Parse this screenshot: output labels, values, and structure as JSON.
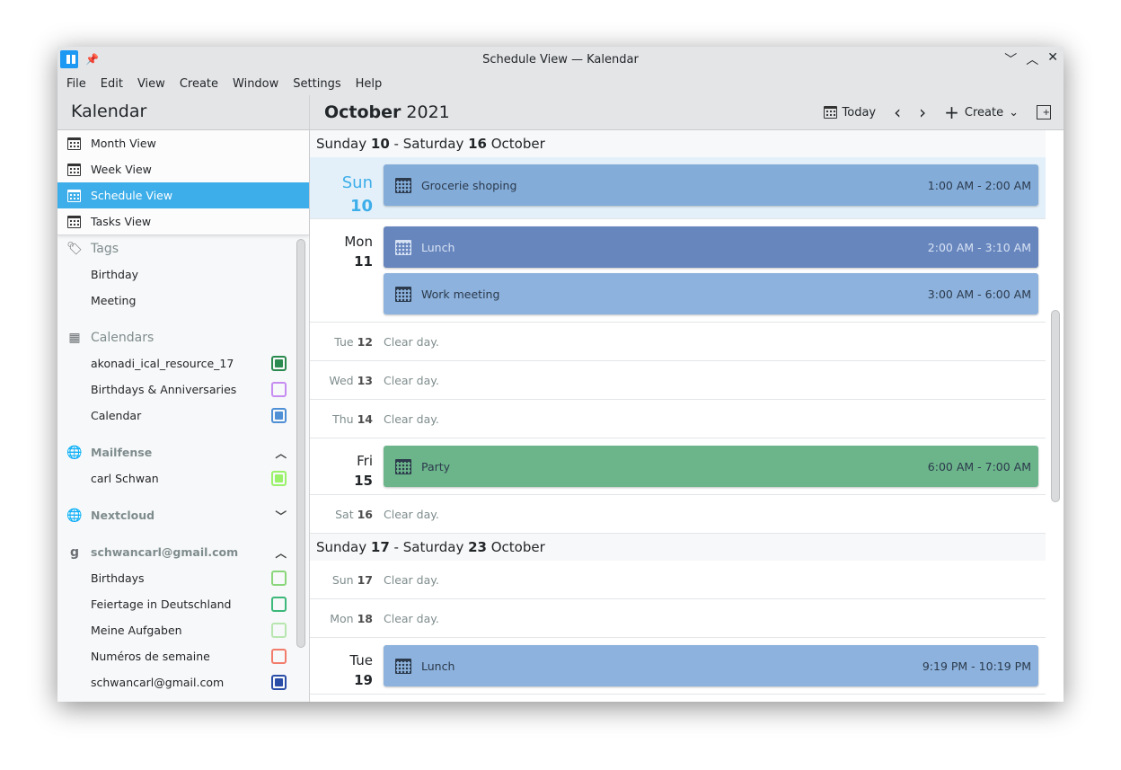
{
  "window": {
    "title": "Schedule View — Kalendar",
    "controls": [
      "﹀",
      "︿",
      "✕"
    ]
  },
  "menu": [
    "File",
    "Edit",
    "View",
    "Create",
    "Window",
    "Settings",
    "Help"
  ],
  "sidebar": {
    "title": "Kalendar",
    "views": [
      {
        "label": "Month View"
      },
      {
        "label": "Week View"
      },
      {
        "label": "Schedule View",
        "selected": true
      },
      {
        "label": "Tasks View"
      }
    ],
    "tags": {
      "label": "Tags",
      "items": [
        "Birthday",
        "Meeting"
      ]
    },
    "calendars": {
      "label": "Calendars",
      "items": [
        {
          "name": "akonadi_ical_resource_17",
          "color": "#2b8a4f",
          "checked": true
        },
        {
          "name": "Birthdays & Anniversaries",
          "color": "#c78cf2",
          "checked": false
        },
        {
          "name": "Calendar",
          "color": "#4f8fd6",
          "checked": true
        }
      ]
    },
    "accounts": [
      {
        "label": "Mailfense",
        "icon": "globe-icon",
        "expanded": true,
        "items": [
          {
            "name": "carl Schwan",
            "color": "#9af26b",
            "checked": true
          }
        ]
      },
      {
        "label": "Nextcloud",
        "icon": "globe-icon",
        "expanded": false,
        "items": []
      },
      {
        "label": "schwancarl@gmail.com",
        "icon": "google-icon",
        "expanded": true,
        "items": [
          {
            "name": "Birthdays",
            "color": "#8ad67c",
            "checked": false
          },
          {
            "name": "Feiertage in Deutschland",
            "color": "#3cb87a",
            "checked": false
          },
          {
            "name": "Meine Aufgaben",
            "color": "#b8e6b0",
            "checked": false
          },
          {
            "name": "Numéros de semaine",
            "color": "#f27c6b",
            "checked": false
          },
          {
            "name": "schwancarl@gmail.com",
            "color": "#2a4ea8",
            "checked": true
          }
        ]
      }
    ]
  },
  "header": {
    "month": "October",
    "year": "2021",
    "today": "Today",
    "create": "Create"
  },
  "schedule": {
    "clear": "Clear day.",
    "weeks": [
      {
        "pre1": "Sunday ",
        "d1": "10",
        "mid": " - Saturday ",
        "d2": "16",
        "post": " October",
        "days": [
          {
            "wd": "Sun",
            "n": "10",
            "today": true,
            "events": [
              {
                "title": "Grocerie shoping",
                "time": "1:00 AM - 2:00 AM",
                "color": "#83acd9"
              }
            ]
          },
          {
            "wd": "Mon",
            "n": "11",
            "events": [
              {
                "title": "Lunch",
                "time": "2:00 AM - 3:10 AM",
                "color": "#6886be",
                "light": true
              },
              {
                "title": "Work meeting",
                "time": "3:00 AM - 6:00 AM",
                "color": "#8cb2dd"
              }
            ]
          },
          {
            "wd": "Tue",
            "n": "12",
            "events": []
          },
          {
            "wd": "Wed",
            "n": "13",
            "events": []
          },
          {
            "wd": "Thu",
            "n": "14",
            "events": []
          },
          {
            "wd": "Fri",
            "n": "15",
            "events": [
              {
                "title": "Party",
                "time": "6:00 AM - 7:00 AM",
                "color": "#6cb58b"
              }
            ]
          },
          {
            "wd": "Sat",
            "n": "16",
            "events": []
          }
        ]
      },
      {
        "pre1": "Sunday ",
        "d1": "17",
        "mid": " - Saturday ",
        "d2": "23",
        "post": " October",
        "days": [
          {
            "wd": "Sun",
            "n": "17",
            "events": []
          },
          {
            "wd": "Mon",
            "n": "18",
            "events": []
          },
          {
            "wd": "Tue",
            "n": "19",
            "events": [
              {
                "title": "Lunch",
                "time": "9:19 PM - 10:19 PM",
                "color": "#8cb2dd"
              }
            ]
          }
        ]
      }
    ]
  }
}
